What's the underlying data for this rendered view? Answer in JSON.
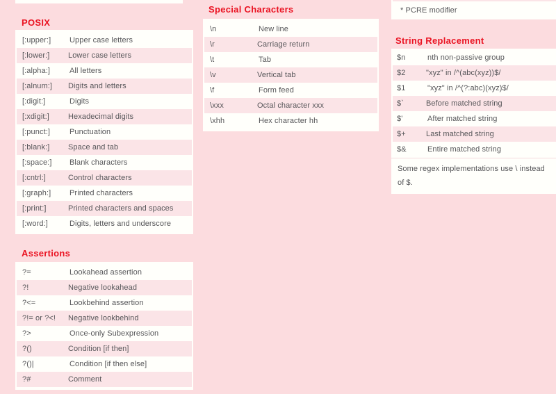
{
  "page": {
    "background": "#fcdcdf",
    "box_background": "#fffffb",
    "row_alt_color": "#fbe4e7",
    "heading_color": "#ea1322",
    "text_color": "#565659"
  },
  "pcre_footnote": "* PCRE modifier",
  "sections": {
    "posix": {
      "title": "POSIX",
      "rows": [
        {
          "key": "[:upper:]",
          "desc": "Upper case letters"
        },
        {
          "key": "[:lower:]",
          "desc": "Lower case letters"
        },
        {
          "key": "[:alpha:]",
          "desc": "All letters"
        },
        {
          "key": "[:alnum:]",
          "desc": "Digits and letters"
        },
        {
          "key": "[:digit:]",
          "desc": "Digits"
        },
        {
          "key": "[:xdigit:]",
          "desc": "Hexadecimal digits"
        },
        {
          "key": "[:punct:]",
          "desc": "Punctuation"
        },
        {
          "key": "[:blank:]",
          "desc": "Space and tab"
        },
        {
          "key": "[:space:]",
          "desc": "Blank characters"
        },
        {
          "key": "[:cntrl:]",
          "desc": "Control characters"
        },
        {
          "key": "[:graph:]",
          "desc": "Printed characters"
        },
        {
          "key": "[:print:]",
          "desc": "Printed characters and spaces"
        },
        {
          "key": "[:word:]",
          "desc": "Digits, letters and underscore"
        }
      ]
    },
    "special": {
      "title": "Special Characters",
      "rows": [
        {
          "key": "\\n",
          "desc": "New line"
        },
        {
          "key": "\\r",
          "desc": "Carriage return"
        },
        {
          "key": "\\t",
          "desc": "Tab"
        },
        {
          "key": "\\v",
          "desc": "Vertical tab"
        },
        {
          "key": "\\f",
          "desc": "Form feed"
        },
        {
          "key": "\\xxx",
          "desc": "Octal character xxx"
        },
        {
          "key": "\\xhh",
          "desc": "Hex character hh"
        }
      ]
    },
    "assertions": {
      "title": "Assertions",
      "rows": [
        {
          "key": "?=",
          "desc": "Lookahead assertion"
        },
        {
          "key": "?!",
          "desc": "Negative lookahead"
        },
        {
          "key": "?<=",
          "desc": "Lookbehind assertion"
        },
        {
          "key": "?!= or ?<!",
          "desc": "Negative lookbehind"
        },
        {
          "key": "?>",
          "desc": "Once-only Subexpression"
        },
        {
          "key": "?()",
          "desc": "Condition [if then]"
        },
        {
          "key": "?()|",
          "desc": "Condition [if then else]"
        },
        {
          "key": "?#",
          "desc": "Comment"
        }
      ]
    },
    "replacement": {
      "title": "String Replacement",
      "rows": [
        {
          "key": "$n",
          "desc": "nth non-passive group"
        },
        {
          "key": "$2",
          "desc": "\"xyz\" in /^(abc(xyz))$/"
        },
        {
          "key": "$1",
          "desc": "\"xyz\" in /^(?:abc)(xyz)$/"
        },
        {
          "key": "$`",
          "desc": "Before matched string"
        },
        {
          "key": "$'",
          "desc": "After matched string"
        },
        {
          "key": "$+",
          "desc": "Last matched string"
        },
        {
          "key": "$&",
          "desc": "Entire matched string"
        }
      ],
      "note": "Some regex implementations use \\ instead of $."
    }
  }
}
